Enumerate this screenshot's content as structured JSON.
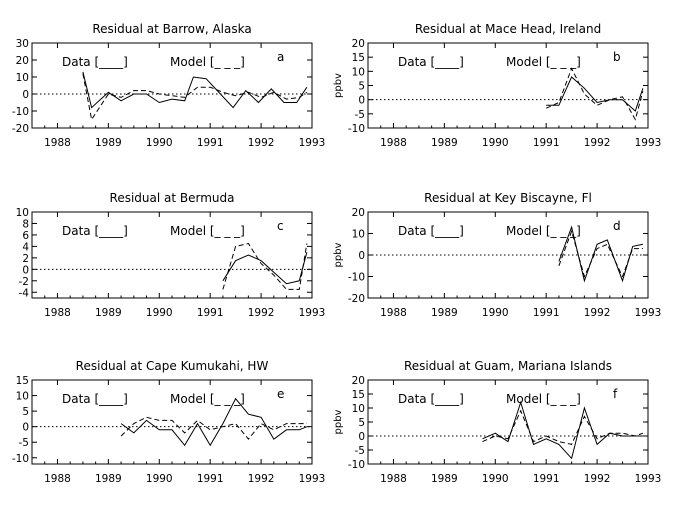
{
  "chart_data": [
    {
      "type": "line",
      "title": "Residual at Barrow, Alaska",
      "panel_letter": "a",
      "ylabel": "",
      "xlim": [
        1987.5,
        1993.0
      ],
      "ylim": [
        -20,
        30
      ],
      "xticks": [
        "1988",
        "1989",
        "1990",
        "1991",
        "1992",
        "1993"
      ],
      "yticks": [
        "-20",
        "-10",
        "0",
        "10",
        "20",
        "30"
      ],
      "legend": {
        "data_label": "Data [____]",
        "model_label": "Model [_ _ _]"
      },
      "series": [
        {
          "style": "solid",
          "x": [
            1988.5,
            1988.67,
            1989.0,
            1989.25,
            1989.5,
            1989.75,
            1990.0,
            1990.25,
            1990.5,
            1990.67,
            1990.92,
            1991.2,
            1991.45,
            1991.7,
            1991.95,
            1992.2,
            1992.45,
            1992.7,
            1992.9
          ],
          "y": [
            13,
            -8,
            1,
            -4,
            0,
            0,
            -5,
            -3,
            -4,
            10,
            9,
            0,
            -8,
            2,
            -5,
            3,
            -5,
            -5,
            4
          ]
        },
        {
          "style": "dashed",
          "x": [
            1988.5,
            1988.67,
            1989.0,
            1989.25,
            1989.5,
            1989.75,
            1990.0,
            1990.25,
            1990.5,
            1990.75,
            1991.0,
            1991.25,
            1991.5,
            1991.75,
            1992.0,
            1992.25,
            1992.5,
            1992.75,
            1992.9
          ],
          "y": [
            12,
            -15,
            0,
            -2,
            2,
            2,
            0,
            -1,
            -2,
            4,
            4,
            1,
            -1,
            1,
            -2,
            1,
            -3,
            -2,
            1
          ]
        }
      ]
    },
    {
      "type": "line",
      "title": "Residual at Mace Head, Ireland",
      "panel_letter": "b",
      "ylabel": "ppbv",
      "xlim": [
        1987.5,
        1993.0
      ],
      "ylim": [
        -10,
        20
      ],
      "xticks": [
        "1988",
        "1989",
        "1990",
        "1991",
        "1992",
        "1993"
      ],
      "yticks": [
        "-10",
        "-5",
        "0",
        "5",
        "10",
        "15",
        "20"
      ],
      "legend": {
        "data_label": "Data [____]",
        "model_label": "Model [_ _ _]"
      },
      "series": [
        {
          "style": "solid",
          "x": [
            1991.0,
            1991.25,
            1991.5,
            1991.75,
            1992.0,
            1992.25,
            1992.5,
            1992.75,
            1992.9
          ],
          "y": [
            -2,
            -2,
            8,
            4,
            -1,
            0,
            0,
            -4,
            4
          ]
        },
        {
          "style": "dashed",
          "x": [
            1991.0,
            1991.25,
            1991.5,
            1991.75,
            1992.0,
            1992.25,
            1992.5,
            1992.75,
            1992.9
          ],
          "y": [
            -3,
            -1,
            11,
            2,
            -2,
            0,
            1,
            -7,
            3
          ]
        }
      ]
    },
    {
      "type": "line",
      "title": "Residual at Bermuda",
      "panel_letter": "c",
      "ylabel": "",
      "xlim": [
        1987.5,
        1993.0
      ],
      "ylim": [
        -5,
        10
      ],
      "xticks": [
        "1988",
        "1989",
        "1990",
        "1991",
        "1992",
        "1993"
      ],
      "yticks": [
        "-4",
        "-2",
        "0",
        "2",
        "4",
        "6",
        "8",
        "10"
      ],
      "legend": {
        "data_label": "Data [____]",
        "model_label": "Model [_ _ _]"
      },
      "series": [
        {
          "style": "solid",
          "x": [
            1991.25,
            1991.5,
            1991.75,
            1992.0,
            1992.25,
            1992.5,
            1992.75,
            1992.9
          ],
          "y": [
            -2,
            1.5,
            2.5,
            1.5,
            -0.5,
            -2.5,
            -2,
            3
          ]
        },
        {
          "style": "dashed",
          "x": [
            1991.25,
            1991.5,
            1991.75,
            1992.0,
            1992.25,
            1992.5,
            1992.75,
            1992.9
          ],
          "y": [
            -3.5,
            4,
            4.5,
            1,
            -1,
            -3.5,
            -3.5,
            4.5
          ]
        }
      ]
    },
    {
      "type": "line",
      "title": "Residual at Key Biscayne, Fl",
      "panel_letter": "d",
      "ylabel": "ppbv",
      "xlim": [
        1987.5,
        1993.0
      ],
      "ylim": [
        -20,
        20
      ],
      "xticks": [
        "1988",
        "1989",
        "1990",
        "1991",
        "1992",
        "1993"
      ],
      "yticks": [
        "-20",
        "-10",
        "0",
        "10",
        "20"
      ],
      "legend": {
        "data_label": "Data [____]",
        "model_label": "Model [_ _ _]"
      },
      "series": [
        {
          "style": "solid",
          "x": [
            1991.25,
            1991.5,
            1991.75,
            1992.0,
            1992.2,
            1992.5,
            1992.7,
            1992.9
          ],
          "y": [
            -3,
            13,
            -12,
            5,
            7,
            -12,
            4,
            5
          ]
        },
        {
          "style": "dashed",
          "x": [
            1991.25,
            1991.5,
            1991.75,
            1992.0,
            1992.2,
            1992.5,
            1992.7,
            1992.9
          ],
          "y": [
            -5,
            11,
            -10,
            3,
            5,
            -10,
            3,
            3
          ]
        }
      ]
    },
    {
      "type": "line",
      "title": "Residual at Cape Kumukahi, HW",
      "panel_letter": "e",
      "ylabel": "",
      "xlim": [
        1987.5,
        1993.0
      ],
      "ylim": [
        -12,
        15
      ],
      "xticks": [
        "1988",
        "1989",
        "1990",
        "1991",
        "1992",
        "1993"
      ],
      "yticks": [
        "-10",
        "-5",
        "0",
        "5",
        "10",
        "15"
      ],
      "legend": {
        "data_label": "Data [____]",
        "model_label": "Model [_ _ _]"
      },
      "series": [
        {
          "style": "solid",
          "x": [
            1989.25,
            1989.5,
            1989.75,
            1990.0,
            1990.25,
            1990.5,
            1990.75,
            1991.0,
            1991.25,
            1991.5,
            1991.75,
            1992.0,
            1992.25,
            1992.5,
            1992.75,
            1992.9
          ],
          "y": [
            1,
            -2,
            2,
            -1,
            -1,
            -6,
            1,
            -6,
            1,
            9,
            4,
            3,
            -4,
            -1,
            -1,
            0
          ]
        },
        {
          "style": "dashed",
          "x": [
            1989.25,
            1989.5,
            1989.75,
            1990.0,
            1990.25,
            1990.5,
            1990.75,
            1991.0,
            1991.25,
            1991.5,
            1991.75,
            1992.0,
            1992.25,
            1992.5,
            1992.75,
            1992.9
          ],
          "y": [
            -3,
            1,
            3,
            2,
            2,
            -2,
            2,
            -1,
            0,
            1,
            -4,
            1,
            -1,
            1,
            1,
            1
          ]
        }
      ]
    },
    {
      "type": "line",
      "title": "Residual at Guam, Mariana Islands",
      "panel_letter": "f",
      "ylabel": "ppbv",
      "xlim": [
        1987.5,
        1993.0
      ],
      "ylim": [
        -10,
        20
      ],
      "xticks": [
        "1988",
        "1989",
        "1990",
        "1991",
        "1992",
        "1993"
      ],
      "yticks": [
        "-10",
        "-5",
        "0",
        "5",
        "10",
        "15",
        "20"
      ],
      "legend": {
        "data_label": "Data [____]",
        "model_label": "Model [_ _ _]"
      },
      "series": [
        {
          "style": "solid",
          "x": [
            1989.75,
            1990.0,
            1990.25,
            1990.5,
            1990.75,
            1991.0,
            1991.25,
            1991.5,
            1991.75,
            1992.0,
            1992.25,
            1992.5,
            1992.75,
            1992.9
          ],
          "y": [
            -1,
            1,
            -2,
            12,
            -3,
            -1,
            -3,
            -8,
            10,
            -3,
            1,
            0,
            0,
            0
          ]
        },
        {
          "style": "dashed",
          "x": [
            1989.75,
            1990.0,
            1990.25,
            1990.5,
            1990.75,
            1991.0,
            1991.25,
            1991.5,
            1991.75,
            1992.0,
            1992.25,
            1992.5,
            1992.75,
            1992.9
          ],
          "y": [
            -2,
            0,
            -1,
            9,
            -2,
            0,
            -2,
            -3,
            7,
            -1,
            1,
            1,
            0,
            1
          ]
        }
      ]
    }
  ]
}
